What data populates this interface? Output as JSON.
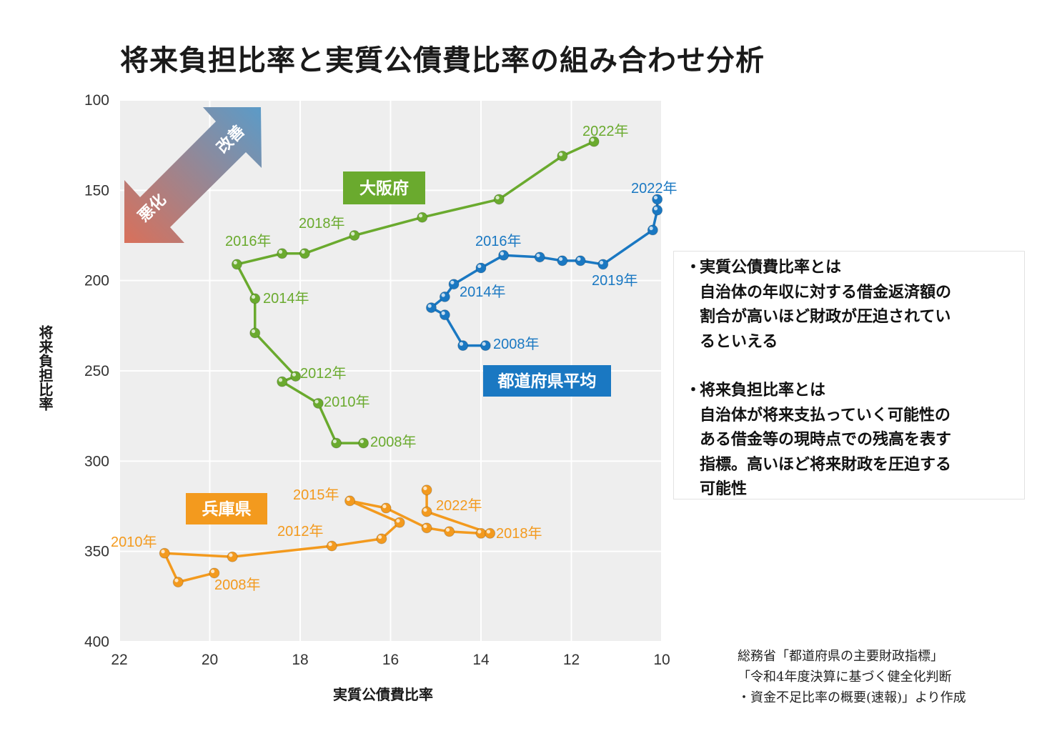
{
  "title": "将来負担比率と実質公債費比率の組み合わせ分析",
  "notes": [
    {
      "bullet": "・",
      "text": "実質公債費比率とは\n自治体の年収に対する借金返済額の\n割合が高いほど財政が圧迫されてい\nるといえる"
    },
    {
      "bullet": "・",
      "text": "将来負担比率とは\n自治体が将来支払っていく可能性の\nある借金等の現時点での残高を表す\n指標。高いほど将来財政を圧迫する\n可能性"
    }
  ],
  "source": "総務省「都道府県の主要財政指標」\n「令和4年度決算に基づく健全化判断\n・資金不足比率の概要(速報)」より作成",
  "arrow_labels": {
    "improve": "改善",
    "worsen": "悪化"
  },
  "colors": {
    "osaka": "#6aaa2e",
    "average": "#1a78c2",
    "hyogo": "#f39a1e",
    "plot_bg": "#eeeeee",
    "grid": "#ffffff",
    "arrow_improve": "#5b9bc8",
    "arrow_worsen": "#d9705a"
  },
  "chart_data": {
    "type": "line",
    "xlabel": "実質公債費比率",
    "ylabel": "将来負担比率",
    "xlim": [
      22,
      10
    ],
    "ylim": [
      100,
      400
    ],
    "x_reversed": true,
    "y_reversed": true,
    "x_ticks": [
      22,
      20,
      18,
      16,
      14,
      12,
      10
    ],
    "y_ticks": [
      100,
      150,
      200,
      250,
      300,
      350,
      400
    ],
    "grid": true,
    "series": [
      {
        "name": "大阪府",
        "color_key": "osaka",
        "points": [
          {
            "year": "2008",
            "x": 16.6,
            "y": 290
          },
          {
            "year": "2009",
            "x": 17.2,
            "y": 290
          },
          {
            "year": "2010",
            "x": 17.6,
            "y": 268
          },
          {
            "year": "2011",
            "x": 18.4,
            "y": 256
          },
          {
            "year": "2012",
            "x": 18.1,
            "y": 253
          },
          {
            "year": "2013",
            "x": 19.0,
            "y": 229
          },
          {
            "year": "2014",
            "x": 19.0,
            "y": 210
          },
          {
            "year": "2015",
            "x": 19.4,
            "y": 191
          },
          {
            "year": "2016",
            "x": 18.4,
            "y": 185
          },
          {
            "year": "2017",
            "x": 17.9,
            "y": 185
          },
          {
            "year": "2018",
            "x": 16.8,
            "y": 175
          },
          {
            "year": "2019",
            "x": 15.3,
            "y": 165
          },
          {
            "year": "2020",
            "x": 13.6,
            "y": 155
          },
          {
            "year": "2021",
            "x": 12.2,
            "y": 131
          },
          {
            "year": "2022",
            "x": 11.5,
            "y": 123
          }
        ],
        "year_labels": [
          {
            "text": "2008年",
            "year": "2008"
          },
          {
            "text": "2010年",
            "year": "2010"
          },
          {
            "text": "2012年",
            "year": "2012"
          },
          {
            "text": "2014年",
            "year": "2014"
          },
          {
            "text": "2016年",
            "year": "2016"
          },
          {
            "text": "2018年",
            "year": "2018"
          },
          {
            "text": "2022年",
            "year": "2022"
          }
        ]
      },
      {
        "name": "都道府県平均",
        "color_key": "average",
        "points": [
          {
            "year": "2008",
            "x": 13.9,
            "y": 236
          },
          {
            "year": "2009",
            "x": 14.4,
            "y": 236
          },
          {
            "year": "2010",
            "x": 14.8,
            "y": 219
          },
          {
            "year": "2011",
            "x": 15.1,
            "y": 215
          },
          {
            "year": "2012",
            "x": 14.8,
            "y": 209
          },
          {
            "year": "2013",
            "x": 14.6,
            "y": 202
          },
          {
            "year": "2014",
            "x": 14.0,
            "y": 193
          },
          {
            "year": "2015",
            "x": 13.5,
            "y": 186
          },
          {
            "year": "2016",
            "x": 12.7,
            "y": 187
          },
          {
            "year": "2017",
            "x": 12.2,
            "y": 189
          },
          {
            "year": "2018",
            "x": 11.8,
            "y": 189
          },
          {
            "year": "2019",
            "x": 11.3,
            "y": 191
          },
          {
            "year": "2020",
            "x": 10.2,
            "y": 172
          },
          {
            "year": "2021",
            "x": 10.1,
            "y": 161
          },
          {
            "year": "2022",
            "x": 10.1,
            "y": 155
          }
        ],
        "year_labels": [
          {
            "text": "2008年",
            "year": "2008"
          },
          {
            "text": "2014年",
            "year": "2014"
          },
          {
            "text": "2016年",
            "year": "2016"
          },
          {
            "text": "2019年",
            "year": "2019"
          },
          {
            "text": "2022年",
            "year": "2022"
          }
        ]
      },
      {
        "name": "兵庫県",
        "color_key": "hyogo",
        "points": [
          {
            "year": "2008",
            "x": 19.9,
            "y": 362
          },
          {
            "year": "2009",
            "x": 20.7,
            "y": 367
          },
          {
            "year": "2010",
            "x": 21.0,
            "y": 351
          },
          {
            "year": "2011",
            "x": 19.5,
            "y": 353
          },
          {
            "year": "2012",
            "x": 17.3,
            "y": 347
          },
          {
            "year": "2013",
            "x": 16.2,
            "y": 343
          },
          {
            "year": "2014",
            "x": 15.8,
            "y": 334
          },
          {
            "year": "2015",
            "x": 16.9,
            "y": 322
          },
          {
            "year": "2016",
            "x": 16.1,
            "y": 326
          },
          {
            "year": "2017",
            "x": 15.2,
            "y": 337
          },
          {
            "year": "2018",
            "x": 14.7,
            "y": 339
          },
          {
            "year": "2019",
            "x": 14.0,
            "y": 340
          },
          {
            "year": "2020",
            "x": 13.8,
            "y": 340
          },
          {
            "year": "2021",
            "x": 15.2,
            "y": 328
          },
          {
            "year": "2022",
            "x": 15.2,
            "y": 316
          }
        ],
        "year_labels": [
          {
            "text": "2008年",
            "year": "2008"
          },
          {
            "text": "2010年",
            "year": "2010"
          },
          {
            "text": "2012年",
            "year": "2012"
          },
          {
            "text": "2015年",
            "year": "2015"
          },
          {
            "text": "2018年",
            "year": "2018"
          },
          {
            "text": "2022年",
            "year": "2022"
          }
        ]
      }
    ]
  }
}
